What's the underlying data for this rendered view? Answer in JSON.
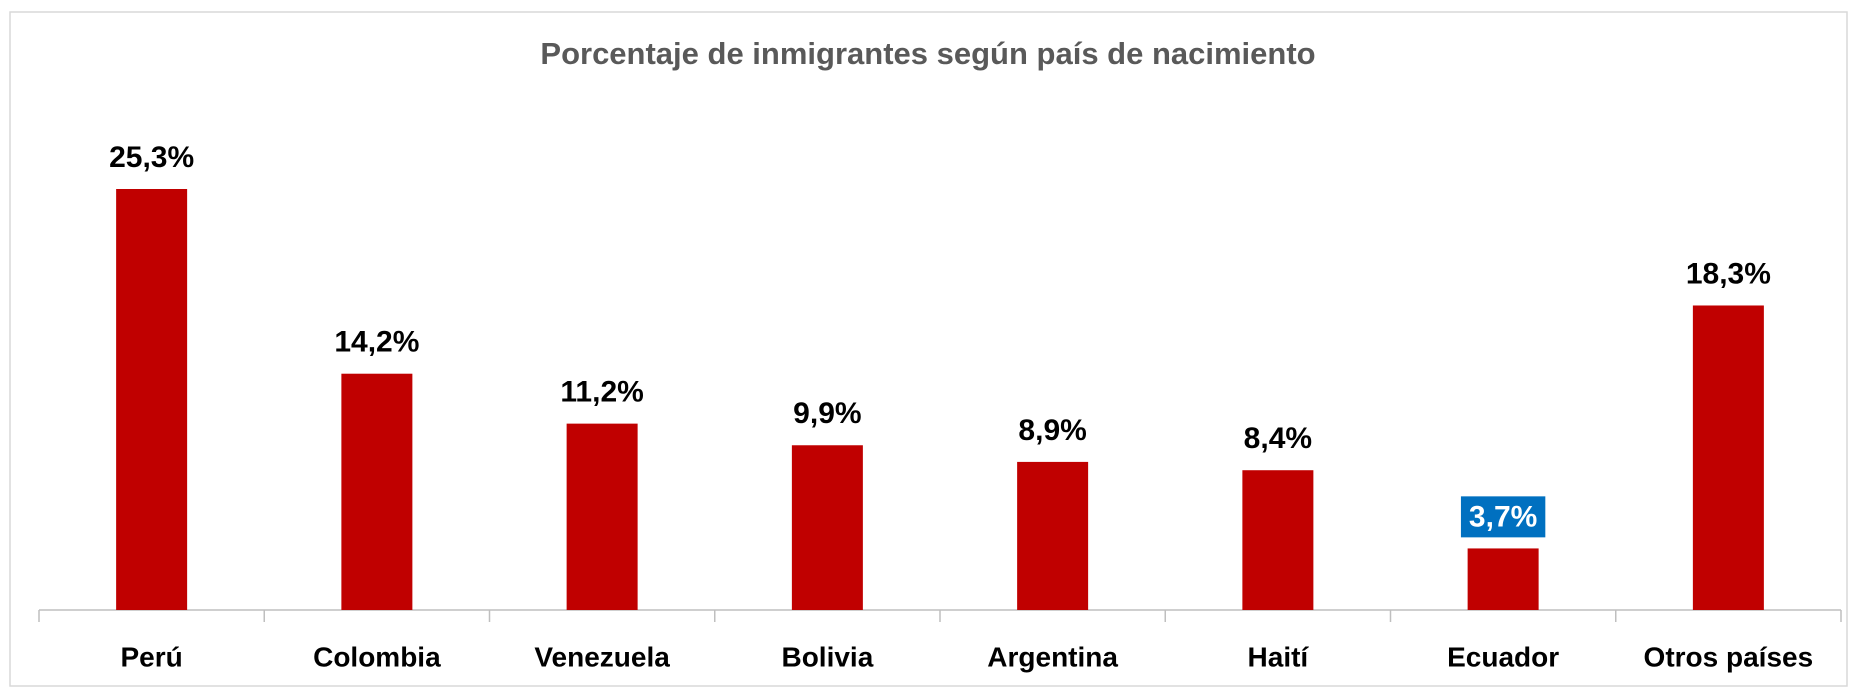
{
  "chart_data": {
    "type": "bar",
    "title": "Porcentaje de inmigrantes según país de nacimiento",
    "categories": [
      "Perú",
      "Colombia",
      "Venezuela",
      "Bolivia",
      "Argentina",
      "Haití",
      "Ecuador",
      "Otros países"
    ],
    "values": [
      25.3,
      14.2,
      11.2,
      9.9,
      8.9,
      8.4,
      3.7,
      18.3
    ],
    "value_labels": [
      "25,3%",
      "14,2%",
      "11,2%",
      "9,9%",
      "8,9%",
      "8,4%",
      "3,7%",
      "18,3%"
    ],
    "color": "#c00000",
    "highlight": "Ecuador",
    "highlight_color": "#0070c0"
  }
}
